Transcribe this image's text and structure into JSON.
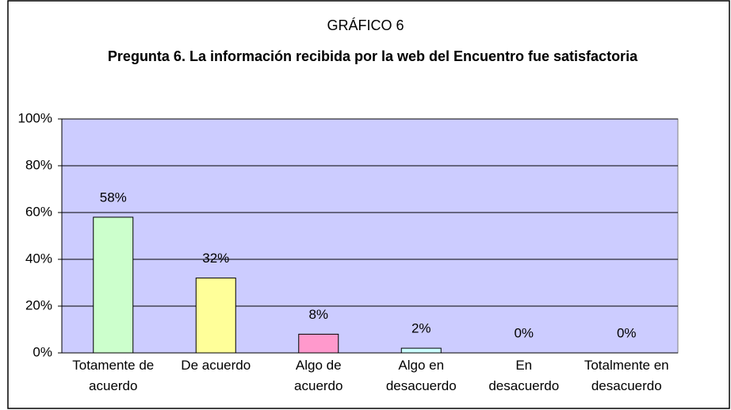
{
  "chart_data": {
    "type": "bar",
    "title": "GRÁFICO 6",
    "subtitle": "Pregunta 6. La información recibida por la web del Encuentro fue satisfactoria",
    "categories": [
      "Totamente de acuerdo",
      "De acuerdo",
      "Algo de acuerdo",
      "Algo en desacuerdo",
      "En desacuerdo",
      "Totalmente en desacuerdo"
    ],
    "values": [
      58,
      32,
      8,
      2,
      0,
      0
    ],
    "value_labels": [
      "58%",
      "32%",
      "8%",
      "2%",
      "0%",
      "0%"
    ],
    "colors": [
      "#ccffcc",
      "#ffff99",
      "#ff99cc",
      "#ccffff",
      "#ccffff",
      "#ccffff"
    ],
    "ylim": [
      0,
      100
    ],
    "yticks": [
      {
        "value": 0,
        "label": "0%"
      },
      {
        "value": 20,
        "label": "20%"
      },
      {
        "value": 40,
        "label": "40%"
      },
      {
        "value": 60,
        "label": "60%"
      },
      {
        "value": 80,
        "label": "80%"
      },
      {
        "value": 100,
        "label": "100%"
      }
    ],
    "grid": true,
    "plot_background": "#ccccff"
  }
}
